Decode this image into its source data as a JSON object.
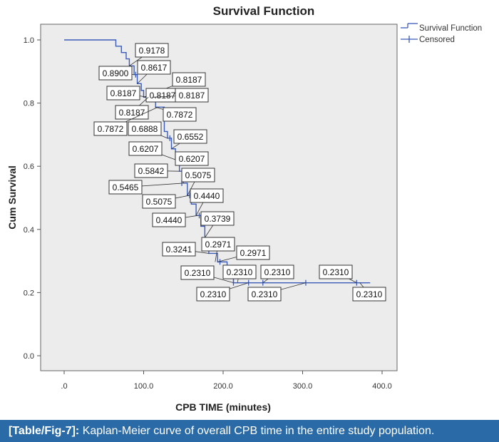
{
  "colors": {
    "plot_background": "#ececec",
    "curve": "#3b5bb8",
    "caption_background": "#2a6aa6",
    "caption_text": "#ffffff"
  },
  "caption": {
    "label": "[Table/Fig-7]:",
    "text": " Kaplan-Meier curve of overall CPB time in the entire study population."
  },
  "chart_data": {
    "type": "line",
    "title": "Survival Function",
    "xlabel": "CPB TIME (minutes)",
    "ylabel": "Cum Survival",
    "xlim": [
      0,
      400
    ],
    "ylim": [
      0,
      1.0
    ],
    "x_ticks": [
      0,
      100,
      200,
      300,
      400
    ],
    "x_tick_labels": [
      ".0",
      "100.0",
      "200.0",
      "300.0",
      "400.0"
    ],
    "y_ticks": [
      0,
      0.2,
      0.4,
      0.6,
      0.8,
      1.0
    ],
    "y_tick_labels": [
      "0.0",
      "0.2",
      "0.4",
      "0.6",
      "0.8",
      "1.0"
    ],
    "legend": {
      "position": "top-right",
      "entries": [
        "Survival Function",
        "Censored"
      ]
    },
    "series": [
      {
        "name": "Survival Function",
        "steps": [
          [
            0,
            1.0
          ],
          [
            65,
            0.98
          ],
          [
            72,
            0.96
          ],
          [
            78,
            0.94
          ],
          [
            82,
            0.9178
          ],
          [
            88,
            0.89
          ],
          [
            92,
            0.8617
          ],
          [
            97,
            0.84
          ],
          [
            100,
            0.8187
          ],
          [
            115,
            0.7872
          ],
          [
            126,
            0.71
          ],
          [
            130,
            0.6888
          ],
          [
            135,
            0.6552
          ],
          [
            140,
            0.6207
          ],
          [
            145,
            0.5842
          ],
          [
            150,
            0.5465
          ],
          [
            155,
            0.5075
          ],
          [
            160,
            0.48
          ],
          [
            166,
            0.444
          ],
          [
            172,
            0.41
          ],
          [
            177,
            0.3739
          ],
          [
            182,
            0.3241
          ],
          [
            193,
            0.2971
          ],
          [
            205,
            0.27
          ],
          [
            213,
            0.231
          ],
          [
            385,
            0.231
          ]
        ]
      }
    ],
    "censored": [
      {
        "x": 90,
        "y": 0.89
      },
      {
        "x": 108,
        "y": 0.8187
      },
      {
        "x": 113,
        "y": 0.8187
      },
      {
        "x": 133,
        "y": 0.6888
      },
      {
        "x": 148,
        "y": 0.5465
      },
      {
        "x": 158,
        "y": 0.5075
      },
      {
        "x": 170,
        "y": 0.444
      },
      {
        "x": 196,
        "y": 0.2971
      },
      {
        "x": 213,
        "y": 0.231
      },
      {
        "x": 232,
        "y": 0.231
      },
      {
        "x": 250,
        "y": 0.231
      },
      {
        "x": 304,
        "y": 0.231
      },
      {
        "x": 368,
        "y": 0.231
      }
    ],
    "annotations": [
      {
        "text": "0.9178",
        "x": 82,
        "y": 0.9178
      },
      {
        "text": "0.8900",
        "x": 88,
        "y": 0.89
      },
      {
        "text": "0.8617",
        "x": 92,
        "y": 0.8617
      },
      {
        "text": "0.8187",
        "x": 100,
        "y": 0.8187
      },
      {
        "text": "0.8187",
        "x": 104,
        "y": 0.8187
      },
      {
        "text": "0.8187",
        "x": 108,
        "y": 0.8187
      },
      {
        "text": "0.8187",
        "x": 112,
        "y": 0.8187
      },
      {
        "text": "0.8187",
        "x": 106,
        "y": 0.8187
      },
      {
        "text": "0.7872",
        "x": 115,
        "y": 0.7872
      },
      {
        "text": "0.7872",
        "x": 118,
        "y": 0.7872
      },
      {
        "text": "0.6888",
        "x": 130,
        "y": 0.6888
      },
      {
        "text": "0.6552",
        "x": 135,
        "y": 0.6552
      },
      {
        "text": "0.6207",
        "x": 140,
        "y": 0.6207
      },
      {
        "text": "0.6207",
        "x": 142,
        "y": 0.6207
      },
      {
        "text": "0.5842",
        "x": 145,
        "y": 0.5842
      },
      {
        "text": "0.5465",
        "x": 150,
        "y": 0.5465
      },
      {
        "text": "0.5075",
        "x": 155,
        "y": 0.5075
      },
      {
        "text": "0.5075",
        "x": 157,
        "y": 0.5075
      },
      {
        "text": "0.4440",
        "x": 166,
        "y": 0.444
      },
      {
        "text": "0.4440",
        "x": 168,
        "y": 0.444
      },
      {
        "text": "0.3739",
        "x": 177,
        "y": 0.3739
      },
      {
        "text": "0.3241",
        "x": 182,
        "y": 0.3241
      },
      {
        "text": "0.2971",
        "x": 190,
        "y": 0.2971
      },
      {
        "text": "0.2971",
        "x": 193,
        "y": 0.2971
      },
      {
        "text": "0.2310",
        "x": 213,
        "y": 0.231
      },
      {
        "text": "0.2310",
        "x": 218,
        "y": 0.231
      },
      {
        "text": "0.2310",
        "x": 250,
        "y": 0.231
      },
      {
        "text": "0.2310",
        "x": 232,
        "y": 0.231
      },
      {
        "text": "0.2310",
        "x": 304,
        "y": 0.231
      },
      {
        "text": "0.2310",
        "x": 368,
        "y": 0.231
      },
      {
        "text": "0.2310",
        "x": 372,
        "y": 0.231
      }
    ]
  }
}
